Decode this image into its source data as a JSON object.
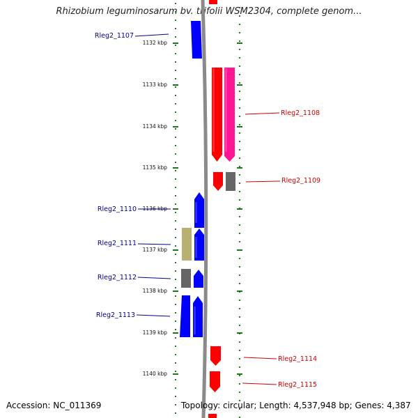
{
  "title": "Rhizobium leguminosarum bv. trifolii WSM2304, complete genom...",
  "accession": "Accession: NC_011369",
  "topology": "Topology: circular; Length: 4,537,948 bp; Genes: 4,387",
  "colors": {
    "backbone": "#8a8a8a",
    "tick": "#1a7a1a",
    "forward_label": "#00008b",
    "reverse_label": "#cc0000"
  },
  "ticks": [
    "1132 kbp",
    "1133 kbp",
    "1134 kbp",
    "1135 kbp",
    "1136 kbp",
    "1137 kbp",
    "1138 kbp",
    "1139 kbp",
    "1140 kbp"
  ],
  "genes": [
    {
      "label": "Rleg2_1107",
      "strand": "forward"
    },
    {
      "label": "Rleg2_1108",
      "strand": "reverse"
    },
    {
      "label": "Rleg2_1109",
      "strand": "reverse"
    },
    {
      "label": "Rleg2_1110",
      "strand": "forward"
    },
    {
      "label": "Rleg2_1111",
      "strand": "forward"
    },
    {
      "label": "Rleg2_1112",
      "strand": "forward"
    },
    {
      "label": "Rleg2_1113",
      "strand": "forward"
    },
    {
      "label": "Rleg2_1114",
      "strand": "reverse"
    },
    {
      "label": "Rleg2_1115",
      "strand": "reverse"
    }
  ]
}
